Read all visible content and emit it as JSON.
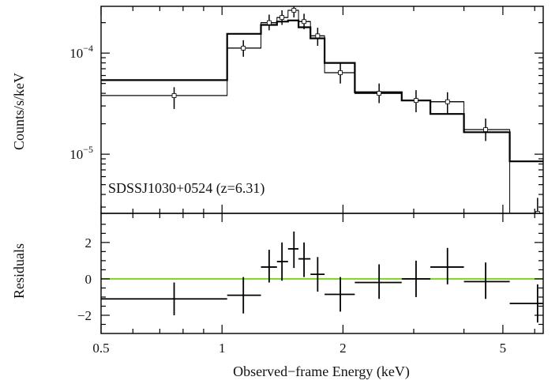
{
  "chart_data": {
    "type": "scatter",
    "annotation": "SDSSJ1030+0524 (z=6.31)",
    "xlabel": "Observed−frame Energy (keV)",
    "x_scale": "log",
    "xlim": [
      0.5,
      6.3
    ],
    "x_ticks": [
      {
        "value": 0.5,
        "label": "0.5"
      },
      {
        "value": 1,
        "label": "1"
      },
      {
        "value": 2,
        "label": "2"
      },
      {
        "value": 5,
        "label": "5"
      }
    ],
    "top_panel": {
      "ylabel": "Counts/s/keV",
      "y_scale": "log",
      "ylim": [
        2.6e-06,
        0.00029
      ],
      "y_ticks": [
        {
          "value": 0.0001,
          "base": "10",
          "exp": "−4"
        },
        {
          "value": 1e-05,
          "base": "10",
          "exp": "−5"
        }
      ],
      "data": [
        {
          "x": 0.76,
          "xlo": 0.5,
          "xhi": 1.03,
          "y": 3.8e-05,
          "ylo": 2.8e-05,
          "yhi": 4.6e-05
        },
        {
          "x": 1.13,
          "xlo": 1.03,
          "xhi": 1.25,
          "y": 0.000112,
          "ylo": 9.2e-05,
          "yhi": 0.000134
        },
        {
          "x": 1.31,
          "xlo": 1.25,
          "xhi": 1.37,
          "y": 0.0002,
          "ylo": 0.000168,
          "yhi": 0.00024
        },
        {
          "x": 1.41,
          "xlo": 1.37,
          "xhi": 1.46,
          "y": 0.000225,
          "ylo": 0.00019,
          "yhi": 0.000265
        },
        {
          "x": 1.51,
          "xlo": 1.46,
          "xhi": 1.55,
          "y": 0.000265,
          "ylo": 0.000225,
          "yhi": 0.00029
        },
        {
          "x": 1.6,
          "xlo": 1.55,
          "xhi": 1.66,
          "y": 0.000205,
          "ylo": 0.000172,
          "yhi": 0.000245
        },
        {
          "x": 1.73,
          "xlo": 1.66,
          "xhi": 1.8,
          "y": 0.000148,
          "ylo": 0.000118,
          "yhi": 0.000178
        },
        {
          "x": 1.97,
          "xlo": 1.8,
          "xhi": 2.14,
          "y": 6.4e-05,
          "ylo": 5e-05,
          "yhi": 8e-05
        },
        {
          "x": 2.46,
          "xlo": 2.14,
          "xhi": 2.8,
          "y": 4e-05,
          "ylo": 3.2e-05,
          "yhi": 5e-05
        },
        {
          "x": 3.04,
          "xlo": 2.8,
          "xhi": 3.3,
          "y": 3.4e-05,
          "ylo": 2.6e-05,
          "yhi": 4.3e-05
        },
        {
          "x": 3.64,
          "xlo": 3.3,
          "xhi": 4.0,
          "y": 3.3e-05,
          "ylo": 2.5e-05,
          "yhi": 4.1e-05
        },
        {
          "x": 4.53,
          "xlo": 4.0,
          "xhi": 5.2,
          "y": 1.75e-05,
          "ylo": 1.35e-05,
          "yhi": 2.25e-05
        },
        {
          "x": 6.1,
          "xlo": 5.2,
          "xhi": 6.3,
          "y": 2.6e-06,
          "ylo": 2.6e-06,
          "yhi": 3.7e-06
        }
      ],
      "model": {
        "edges": [
          0.5,
          1.03,
          1.25,
          1.37,
          1.46,
          1.55,
          1.66,
          1.8,
          2.14,
          2.8,
          3.3,
          4.0,
          5.2,
          6.3
        ],
        "values": [
          5.4e-05,
          0.000155,
          0.00019,
          0.000205,
          0.00021,
          0.00018,
          0.00014,
          8e-05,
          4.1e-05,
          3.4e-05,
          2.5e-05,
          1.65e-05,
          8.5e-06
        ]
      }
    },
    "bottom_panel": {
      "ylabel": "Residuals",
      "ylim": [
        -3,
        3.6
      ],
      "y_ticks": [
        {
          "value": 2,
          "label": "2"
        },
        {
          "value": 0,
          "label": "0"
        },
        {
          "value": -2,
          "label": "−2"
        }
      ],
      "zero_line_color": "#7ed321",
      "data": [
        {
          "x": 0.76,
          "xlo": 0.5,
          "xhi": 1.03,
          "y": -1.1,
          "ylo": -2.0,
          "yhi": -0.2
        },
        {
          "x": 1.13,
          "xlo": 1.03,
          "xhi": 1.25,
          "y": -0.9,
          "ylo": -1.9,
          "yhi": 0.1
        },
        {
          "x": 1.31,
          "xlo": 1.25,
          "xhi": 1.37,
          "y": 0.65,
          "ylo": -0.2,
          "yhi": 1.6
        },
        {
          "x": 1.41,
          "xlo": 1.37,
          "xhi": 1.46,
          "y": 0.95,
          "ylo": -0.1,
          "yhi": 2.0
        },
        {
          "x": 1.51,
          "xlo": 1.46,
          "xhi": 1.55,
          "y": 1.65,
          "ylo": 0.6,
          "yhi": 2.6
        },
        {
          "x": 1.6,
          "xlo": 1.55,
          "xhi": 1.66,
          "y": 1.1,
          "ylo": 0.1,
          "yhi": 2.0
        },
        {
          "x": 1.73,
          "xlo": 1.66,
          "xhi": 1.8,
          "y": 0.25,
          "ylo": -0.7,
          "yhi": 1.2
        },
        {
          "x": 1.97,
          "xlo": 1.8,
          "xhi": 2.14,
          "y": -0.85,
          "ylo": -1.8,
          "yhi": 0.1
        },
        {
          "x": 2.46,
          "xlo": 2.14,
          "xhi": 2.8,
          "y": -0.2,
          "ylo": -1.1,
          "yhi": 0.8
        },
        {
          "x": 3.04,
          "xlo": 2.8,
          "xhi": 3.3,
          "y": 0.0,
          "ylo": -1.0,
          "yhi": 1.0
        },
        {
          "x": 3.64,
          "xlo": 3.3,
          "xhi": 4.0,
          "y": 0.65,
          "ylo": -0.3,
          "yhi": 1.7
        },
        {
          "x": 4.53,
          "xlo": 4.0,
          "xhi": 5.2,
          "y": -0.15,
          "ylo": -1.1,
          "yhi": 0.9
        },
        {
          "x": 6.1,
          "xlo": 5.2,
          "xhi": 6.3,
          "y": -1.35,
          "ylo": -2.4,
          "yhi": -0.3
        }
      ]
    }
  }
}
